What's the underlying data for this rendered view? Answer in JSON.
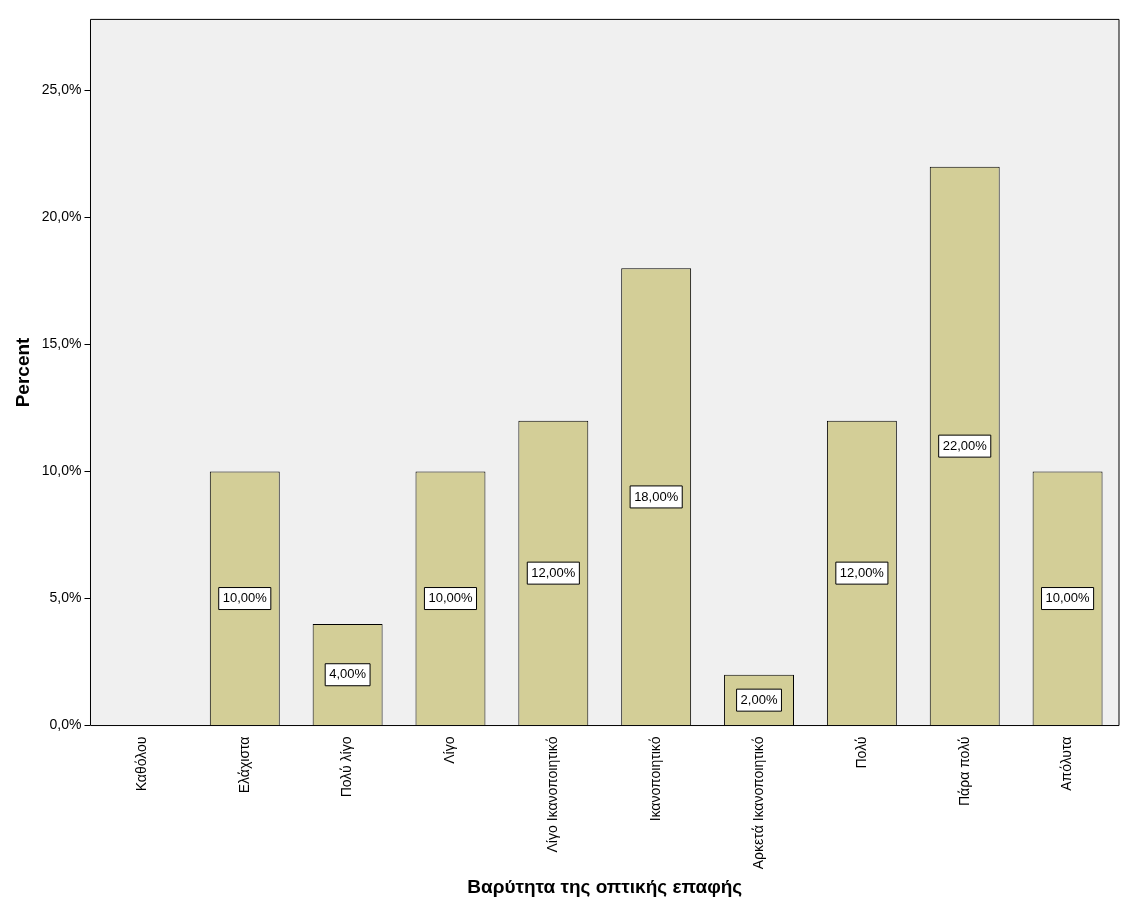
{
  "chart_data": {
    "type": "bar",
    "xlabel": "Βαρύτητα της οπτικής επαφής",
    "ylabel": "Percent",
    "categories": [
      "Καθόλου",
      "Ελάχιστα",
      "Πολύ λίγο",
      "Λίγο",
      "Λίγο Ικανοποιητικό",
      "Ικανοποιητικό",
      "Αρκετά Ικανοποιητικό",
      "Πολύ",
      "Πάρα πολύ",
      "Απόλυτα"
    ],
    "values": [
      0,
      10,
      4,
      10,
      12,
      18,
      2,
      12,
      22,
      10
    ],
    "value_labels": [
      null,
      "10,00%",
      "4,00%",
      "10,00%",
      "12,00%",
      "18,00%",
      "2,00%",
      "12,00%",
      "22,00%",
      "10,00%"
    ],
    "color": "#d3ce97",
    "ylim": [
      0,
      27.8
    ],
    "yticks": [
      {
        "value": 0,
        "label": "0,0%"
      },
      {
        "value": 5,
        "label": "5,0%"
      },
      {
        "value": 10,
        "label": "10,0%"
      },
      {
        "value": 15,
        "label": "15,0%"
      },
      {
        "value": 20,
        "label": "20,0%"
      },
      {
        "value": 25,
        "label": "25,0%"
      }
    ]
  }
}
